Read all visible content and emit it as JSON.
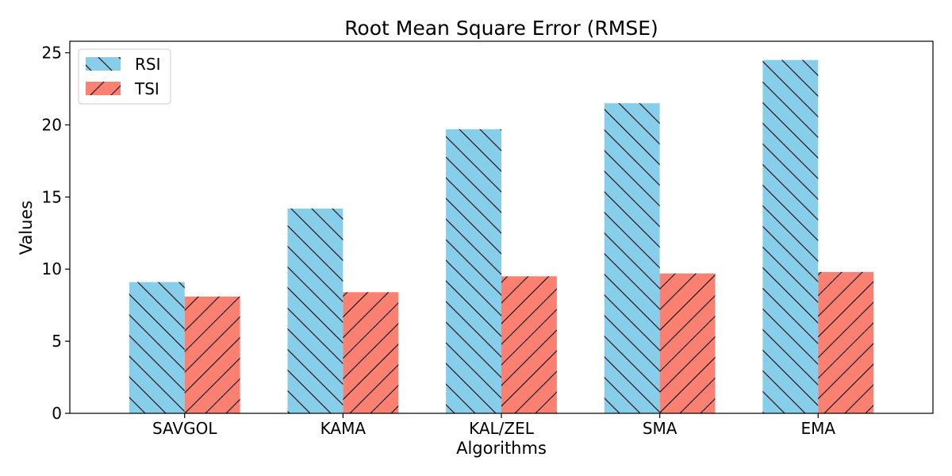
{
  "chart_data": {
    "type": "bar",
    "title": "Root Mean Square Error (RMSE)",
    "xlabel": "Algorithms",
    "ylabel": "Values",
    "categories": [
      "SAVGOL",
      "KAMA",
      "KAL/ZEL",
      "SMA",
      "EMA"
    ],
    "series": [
      {
        "name": "RSI",
        "values": [
          9.1,
          14.2,
          19.7,
          21.5,
          24.5
        ],
        "color": "#87CEEB",
        "hatch": "\\"
      },
      {
        "name": "TSI",
        "values": [
          8.1,
          8.4,
          9.5,
          9.7,
          9.8
        ],
        "color": "#FA8072",
        "hatch": "/"
      }
    ],
    "ylim": [
      0,
      25.8
    ],
    "yticks": [
      0,
      5,
      10,
      15,
      20,
      25
    ],
    "grid": false,
    "legend": "top-left"
  }
}
